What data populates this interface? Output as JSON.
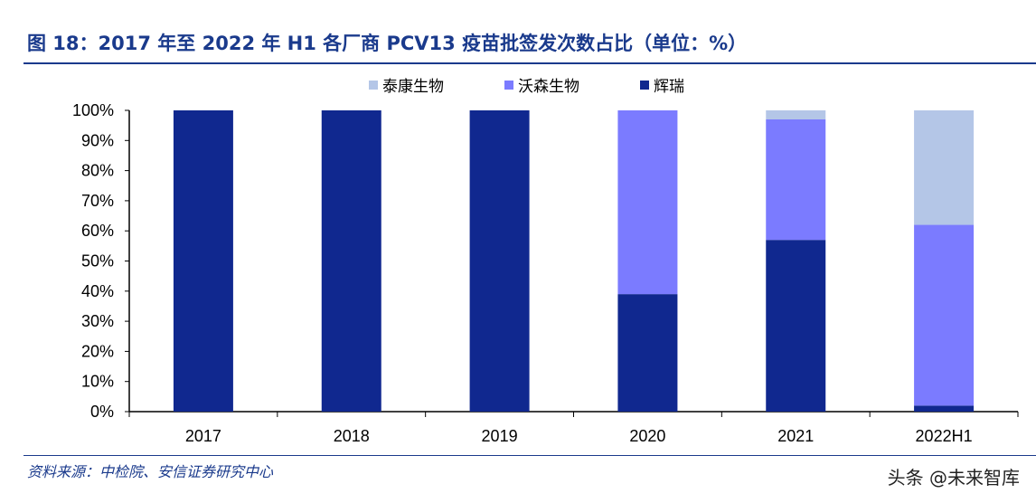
{
  "title": "图 18：2017 年至 2022 年 H1 各厂商 PCV13 疫苗批签发次数占比（单位：%）",
  "source": "资料来源：中检院、安信证券研究中心",
  "watermark": "头条 @未来智库",
  "chart_data": {
    "type": "bar",
    "stacked": true,
    "categories": [
      "2017",
      "2018",
      "2019",
      "2020",
      "2021",
      "2022H1"
    ],
    "series": [
      {
        "name": "辉瑞",
        "color": "#10288f",
        "values": [
          100,
          100,
          100,
          39,
          57,
          2
        ]
      },
      {
        "name": "沃森生物",
        "color": "#7b7bff",
        "values": [
          0,
          0,
          0,
          61,
          40,
          60
        ]
      },
      {
        "name": "泰康生物",
        "color": "#b4c6e7",
        "values": [
          0,
          0,
          0,
          0,
          3,
          38
        ]
      }
    ],
    "legend_order": [
      "泰康生物",
      "沃森生物",
      "辉瑞"
    ],
    "legend_position": "top",
    "ylim": [
      0,
      100
    ],
    "yticks": [
      "0%",
      "10%",
      "20%",
      "30%",
      "40%",
      "50%",
      "60%",
      "70%",
      "80%",
      "90%",
      "100%"
    ],
    "grid": false
  }
}
